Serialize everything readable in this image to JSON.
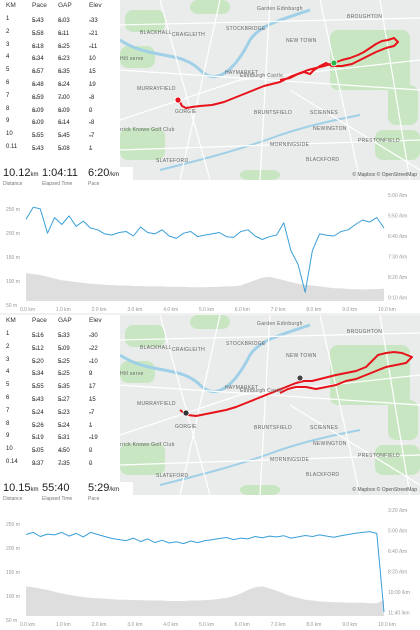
{
  "activities": [
    {
      "splits_header": {
        "km": "KM",
        "pace": "Pace",
        "gap": "GAP",
        "elev": "Elev"
      },
      "splits": [
        {
          "km": "1",
          "pace": "5:43",
          "gap": "6:03",
          "elev": "-33"
        },
        {
          "km": "2",
          "pace": "5:58",
          "gap": "6:11",
          "elev": "-21"
        },
        {
          "km": "3",
          "pace": "6:18",
          "gap": "6:25",
          "elev": "-11"
        },
        {
          "km": "4",
          "pace": "6:34",
          "gap": "6:23",
          "elev": "10"
        },
        {
          "km": "5",
          "pace": "6:57",
          "gap": "6:35",
          "elev": "15"
        },
        {
          "km": "6",
          "pace": "6:48",
          "gap": "6:24",
          "elev": "19"
        },
        {
          "km": "7",
          "pace": "6:59",
          "gap": "7:00",
          "elev": "-8"
        },
        {
          "km": "8",
          "pace": "6:09",
          "gap": "6:09",
          "elev": "0"
        },
        {
          "km": "9",
          "pace": "6:09",
          "gap": "6:14",
          "elev": "-8"
        },
        {
          "km": "10",
          "pace": "5:55",
          "gap": "5:45",
          "elev": "-7"
        },
        {
          "km": "0.11",
          "pace": "5:43",
          "gap": "5:08",
          "elev": "1"
        }
      ],
      "pace_unit": "/km",
      "elev_unit": "m",
      "summary": {
        "distance": "10.12",
        "distance_unit": "km",
        "distance_label": "Distance",
        "elapsed": "1:04:11",
        "elapsed_label": "Elapsed Time",
        "pace": "6:20",
        "pace_unit": "/km",
        "pace_label": "Pace"
      },
      "chart_data": {
        "type": "line",
        "x_label_ticks": [
          "0.0 km",
          "1.0 km",
          "2.0 km",
          "3.0 km",
          "4.0 km",
          "5.0 km",
          "6.0 km",
          "7.0 km",
          "8.0 km",
          "9.0 km",
          "10.0 km"
        ],
        "left_ticks": [
          "250 m",
          "200 m",
          "150 m",
          "100 m",
          "50 m"
        ],
        "right_ticks": [
          "5:00 /km",
          "5:50 /km",
          "6:40 /km",
          "7:30 /km",
          "8:20 /km",
          "9:10 /km"
        ],
        "elevation_range_m": [
          25,
          265
        ],
        "pace_range_s_per_km": [
          260,
          565
        ],
        "series": [
          {
            "name": "",
            "values_elev_m": [
              88,
              86,
              84,
              80,
              76,
              72,
              70,
              68,
              66,
              64,
              63,
              62,
              61,
              60,
              60,
              59,
              59,
              58,
              58,
              58,
              57,
              57,
              57,
              56,
              56,
              56,
              57,
              57,
              58,
              58,
              60,
              66,
              72,
              78,
              80,
              76,
              72,
              68,
              64,
              62,
              60,
              58,
              56,
              54,
              54,
              52,
              52,
              51,
              52,
              52,
              53
            ]
          },
          {
            "name": "",
            "values_pace_s": [
              330,
              295,
              300,
              370,
              325,
              345,
              320,
              350,
              335,
              355,
              360,
              372,
              375,
              368,
              365,
              378,
              352,
              368,
              372,
              360,
              378,
              385,
              370,
              365,
              380,
              375,
              372,
              368,
              380,
              382,
              365,
              360,
              378,
              388,
              380,
              375,
              340,
              420,
              460,
              540,
              420,
              372,
              376,
              378,
              365,
              360,
              345,
              332,
              338,
              325,
              355
            ]
          }
        ]
      }
    },
    {
      "splits_header": {
        "km": "KM",
        "pace": "Pace",
        "gap": "GAP",
        "elev": "Elev"
      },
      "splits": [
        {
          "km": "1",
          "pace": "5:16",
          "gap": "5:33",
          "elev": "-30"
        },
        {
          "km": "2",
          "pace": "5:12",
          "gap": "5:09",
          "elev": "-22"
        },
        {
          "km": "3",
          "pace": "5:20",
          "gap": "5:25",
          "elev": "-10"
        },
        {
          "km": "4",
          "pace": "5:34",
          "gap": "5:25",
          "elev": "9"
        },
        {
          "km": "5",
          "pace": "5:55",
          "gap": "5:35",
          "elev": "17"
        },
        {
          "km": "6",
          "pace": "5:43",
          "gap": "5:27",
          "elev": "15"
        },
        {
          "km": "7",
          "pace": "5:24",
          "gap": "5:23",
          "elev": "-7"
        },
        {
          "km": "8",
          "pace": "5:26",
          "gap": "5:24",
          "elev": "1"
        },
        {
          "km": "9",
          "pace": "5:19",
          "gap": "5:31",
          "elev": "-19"
        },
        {
          "km": "10",
          "pace": "5:05",
          "gap": "4:50",
          "elev": "0"
        },
        {
          "km": "0.14",
          "pace": "9:37",
          "gap": "7:35",
          "elev": "0"
        }
      ],
      "pace_unit": "/km",
      "elev_unit": "m",
      "summary": {
        "distance": "10.15",
        "distance_unit": "km",
        "distance_label": "Distance",
        "elapsed": "55:40",
        "elapsed_label": "Elapsed Time",
        "pace": "5:29",
        "pace_unit": "/km",
        "pace_label": "Pace"
      },
      "chart_data": {
        "type": "line",
        "x_label_ticks": [
          "0.0 km",
          "1.0 km",
          "2.0 km",
          "3.0 km",
          "4.0 km",
          "5.0 km",
          "6.0 km",
          "7.0 km",
          "8.0 km",
          "9.0 km",
          "10.0 km"
        ],
        "left_ticks": [
          "250 m",
          "200 m",
          "150 m",
          "100 m",
          "50 m"
        ],
        "right_ticks": [
          "3:20 /km",
          "5:00 /km",
          "6:40 /km",
          "8:20 /km",
          "10:00 /km",
          "11:40 /km"
        ],
        "elevation_range_m": [
          25,
          265
        ],
        "pace_range_s_per_km": [
          190,
          710
        ],
        "series": [
          {
            "name": "",
            "values_elev_m": [
              92,
              90,
              87,
              84,
              80,
              76,
              73,
              70,
              68,
              66,
              65,
              64,
              63,
              62,
              62,
              61,
              61,
              60,
              60,
              60,
              59,
              59,
              59,
              60,
              60,
              61,
              62,
              64,
              66,
              70,
              76,
              84,
              90,
              92,
              88,
              82,
              76,
              70,
              66,
              62,
              60,
              58,
              57,
              56,
              56,
              55,
              55,
              55,
              54,
              54,
              62
            ]
          },
          {
            "name": "",
            "values_pace_s": [
              310,
              300,
              320,
              308,
              312,
              300,
              318,
              305,
              322,
              300,
              310,
              320,
              330,
              335,
              340,
              328,
              345,
              332,
              350,
              338,
              352,
              346,
              355,
              342,
              350,
              340,
              336,
              330,
              325,
              335,
              328,
              332,
              320,
              326,
              318,
              322,
              316,
              328,
              322,
              315,
              320,
              312,
              318,
              324,
              316,
              310,
              304,
              300,
              296,
              305,
              690
            ]
          }
        ]
      }
    }
  ],
  "map": {
    "labels": [
      "Garden Edinburgh",
      "BROUGHTON",
      "BLACKHALL",
      "CRAIGLEITH",
      "STOCKBRIDGE",
      "NEW TOWN",
      "HAYMARKET",
      "Edinburgh Castle",
      "MURRAYFIELD",
      "GORGIE",
      "BRUNTSFIELD",
      "SCIENNES",
      "NEWINGTON",
      "MORNINGSIDE",
      "PRESTONFIELD",
      "BLACKFORD",
      "SLATEFORD",
      "rrick Knowe Golf Club",
      "Hill serve"
    ],
    "attribution": "© Mapbox © OpenStreetMap",
    "route_color": "#e8131a"
  }
}
